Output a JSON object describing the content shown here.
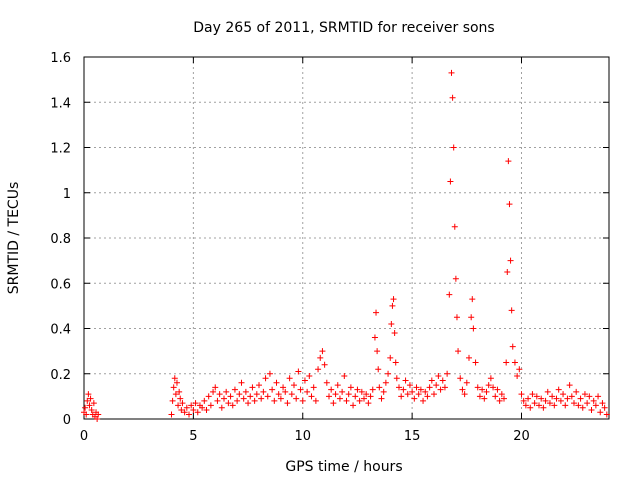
{
  "chart_data": {
    "type": "scatter",
    "title": "Day 265 of 2011, SRMTID for receiver sons",
    "xlabel": "GPS time / hours",
    "ylabel": "SRMTID / TECUs",
    "xlim": [
      0,
      24
    ],
    "ylim": [
      0,
      1.6
    ],
    "x_ticks": [
      0,
      5,
      10,
      15,
      20
    ],
    "x_tick_labels": [
      "0",
      "5",
      "10",
      "15",
      "20"
    ],
    "y_ticks": [
      0,
      0.2,
      0.4,
      0.6,
      0.8,
      1.0,
      1.2,
      1.4,
      1.6
    ],
    "y_tick_labels": [
      "0",
      "0.2",
      "0.4",
      "0.6",
      "0.8",
      "1",
      "1.2",
      "1.4",
      "1.6"
    ],
    "grid": true,
    "marker": "+",
    "color": "#ff0000",
    "series": [
      {
        "name": "SRMTID",
        "points": [
          [
            0.0,
            0.03
          ],
          [
            0.05,
            0.05
          ],
          [
            0.1,
            0.02
          ],
          [
            0.15,
            0.08
          ],
          [
            0.2,
            0.11
          ],
          [
            0.25,
            0.06
          ],
          [
            0.3,
            0.09
          ],
          [
            0.35,
            0.04
          ],
          [
            0.4,
            0.02
          ],
          [
            0.45,
            0.07
          ],
          [
            0.5,
            0.01
          ],
          [
            0.55,
            0.03
          ],
          [
            0.6,
            0.0
          ],
          [
            0.65,
            0.02
          ],
          [
            4.0,
            0.02
          ],
          [
            4.05,
            0.08
          ],
          [
            4.1,
            0.14
          ],
          [
            4.15,
            0.18
          ],
          [
            4.2,
            0.11
          ],
          [
            4.25,
            0.16
          ],
          [
            4.3,
            0.06
          ],
          [
            4.35,
            0.12
          ],
          [
            4.4,
            0.09
          ],
          [
            4.45,
            0.04
          ],
          [
            4.5,
            0.07
          ],
          [
            4.6,
            0.03
          ],
          [
            4.7,
            0.05
          ],
          [
            4.8,
            0.02
          ],
          [
            4.9,
            0.06
          ],
          [
            5.0,
            0.04
          ],
          [
            5.1,
            0.07
          ],
          [
            5.2,
            0.03
          ],
          [
            5.3,
            0.06
          ],
          [
            5.4,
            0.05
          ],
          [
            5.5,
            0.08
          ],
          [
            5.6,
            0.04
          ],
          [
            5.7,
            0.1
          ],
          [
            5.8,
            0.06
          ],
          [
            5.9,
            0.12
          ],
          [
            6.0,
            0.14
          ],
          [
            6.1,
            0.08
          ],
          [
            6.2,
            0.11
          ],
          [
            6.3,
            0.05
          ],
          [
            6.4,
            0.09
          ],
          [
            6.5,
            0.12
          ],
          [
            6.6,
            0.07
          ],
          [
            6.7,
            0.1
          ],
          [
            6.8,
            0.06
          ],
          [
            6.9,
            0.13
          ],
          [
            7.0,
            0.08
          ],
          [
            7.1,
            0.11
          ],
          [
            7.2,
            0.16
          ],
          [
            7.3,
            0.09
          ],
          [
            7.4,
            0.12
          ],
          [
            7.5,
            0.07
          ],
          [
            7.6,
            0.1
          ],
          [
            7.7,
            0.14
          ],
          [
            7.8,
            0.08
          ],
          [
            7.9,
            0.11
          ],
          [
            8.0,
            0.15
          ],
          [
            8.1,
            0.09
          ],
          [
            8.2,
            0.12
          ],
          [
            8.3,
            0.18
          ],
          [
            8.4,
            0.1
          ],
          [
            8.5,
            0.2
          ],
          [
            8.6,
            0.13
          ],
          [
            8.7,
            0.08
          ],
          [
            8.8,
            0.16
          ],
          [
            8.9,
            0.11
          ],
          [
            9.0,
            0.09
          ],
          [
            9.1,
            0.14
          ],
          [
            9.2,
            0.12
          ],
          [
            9.3,
            0.07
          ],
          [
            9.4,
            0.18
          ],
          [
            9.5,
            0.11
          ],
          [
            9.6,
            0.15
          ],
          [
            9.7,
            0.09
          ],
          [
            9.8,
            0.21
          ],
          [
            9.9,
            0.13
          ],
          [
            10.0,
            0.08
          ],
          [
            10.1,
            0.17
          ],
          [
            10.2,
            0.12
          ],
          [
            10.3,
            0.19
          ],
          [
            10.4,
            0.1
          ],
          [
            10.5,
            0.14
          ],
          [
            10.6,
            0.08
          ],
          [
            10.7,
            0.22
          ],
          [
            10.8,
            0.27
          ],
          [
            10.9,
            0.3
          ],
          [
            11.0,
            0.24
          ],
          [
            11.1,
            0.16
          ],
          [
            11.2,
            0.1
          ],
          [
            11.3,
            0.13
          ],
          [
            11.4,
            0.07
          ],
          [
            11.5,
            0.11
          ],
          [
            11.6,
            0.15
          ],
          [
            11.7,
            0.09
          ],
          [
            11.8,
            0.12
          ],
          [
            11.9,
            0.19
          ],
          [
            12.0,
            0.08
          ],
          [
            12.1,
            0.11
          ],
          [
            12.2,
            0.14
          ],
          [
            12.3,
            0.06
          ],
          [
            12.4,
            0.1
          ],
          [
            12.5,
            0.13
          ],
          [
            12.6,
            0.08
          ],
          [
            12.7,
            0.12
          ],
          [
            12.8,
            0.09
          ],
          [
            12.9,
            0.11
          ],
          [
            13.0,
            0.07
          ],
          [
            13.1,
            0.1
          ],
          [
            13.2,
            0.13
          ],
          [
            13.3,
            0.36
          ],
          [
            13.35,
            0.47
          ],
          [
            13.4,
            0.3
          ],
          [
            13.45,
            0.22
          ],
          [
            13.5,
            0.14
          ],
          [
            13.6,
            0.09
          ],
          [
            13.7,
            0.12
          ],
          [
            13.8,
            0.16
          ],
          [
            13.9,
            0.2
          ],
          [
            14.0,
            0.27
          ],
          [
            14.05,
            0.42
          ],
          [
            14.1,
            0.5
          ],
          [
            14.15,
            0.53
          ],
          [
            14.2,
            0.38
          ],
          [
            14.25,
            0.25
          ],
          [
            14.3,
            0.18
          ],
          [
            14.4,
            0.14
          ],
          [
            14.5,
            0.1
          ],
          [
            14.6,
            0.13
          ],
          [
            14.7,
            0.17
          ],
          [
            14.8,
            0.11
          ],
          [
            14.9,
            0.15
          ],
          [
            15.0,
            0.12
          ],
          [
            15.1,
            0.09
          ],
          [
            15.2,
            0.14
          ],
          [
            15.3,
            0.11
          ],
          [
            15.4,
            0.13
          ],
          [
            15.5,
            0.08
          ],
          [
            15.6,
            0.12
          ],
          [
            15.7,
            0.1
          ],
          [
            15.8,
            0.14
          ],
          [
            15.9,
            0.17
          ],
          [
            16.0,
            0.11
          ],
          [
            16.1,
            0.15
          ],
          [
            16.2,
            0.19
          ],
          [
            16.3,
            0.13
          ],
          [
            16.4,
            0.17
          ],
          [
            16.5,
            0.14
          ],
          [
            16.6,
            0.2
          ],
          [
            16.7,
            0.55
          ],
          [
            16.75,
            1.05
          ],
          [
            16.8,
            1.53
          ],
          [
            16.85,
            1.42
          ],
          [
            16.9,
            1.2
          ],
          [
            16.95,
            0.85
          ],
          [
            17.0,
            0.62
          ],
          [
            17.05,
            0.45
          ],
          [
            17.1,
            0.3
          ],
          [
            17.2,
            0.18
          ],
          [
            17.3,
            0.13
          ],
          [
            17.4,
            0.11
          ],
          [
            17.5,
            0.16
          ],
          [
            17.6,
            0.27
          ],
          [
            17.7,
            0.45
          ],
          [
            17.75,
            0.53
          ],
          [
            17.8,
            0.4
          ],
          [
            17.9,
            0.25
          ],
          [
            18.0,
            0.14
          ],
          [
            18.1,
            0.1
          ],
          [
            18.2,
            0.13
          ],
          [
            18.3,
            0.09
          ],
          [
            18.4,
            0.12
          ],
          [
            18.5,
            0.15
          ],
          [
            18.6,
            0.18
          ],
          [
            18.7,
            0.14
          ],
          [
            18.8,
            0.1
          ],
          [
            18.9,
            0.13
          ],
          [
            19.0,
            0.08
          ],
          [
            19.1,
            0.11
          ],
          [
            19.2,
            0.09
          ],
          [
            19.3,
            0.25
          ],
          [
            19.35,
            0.65
          ],
          [
            19.4,
            1.14
          ],
          [
            19.45,
            0.95
          ],
          [
            19.5,
            0.7
          ],
          [
            19.55,
            0.48
          ],
          [
            19.6,
            0.32
          ],
          [
            19.7,
            0.25
          ],
          [
            19.8,
            0.19
          ],
          [
            19.9,
            0.22
          ],
          [
            20.0,
            0.11
          ],
          [
            20.1,
            0.08
          ],
          [
            20.2,
            0.06
          ],
          [
            20.3,
            0.09
          ],
          [
            20.4,
            0.05
          ],
          [
            20.5,
            0.11
          ],
          [
            20.6,
            0.07
          ],
          [
            20.7,
            0.1
          ],
          [
            20.8,
            0.06
          ],
          [
            20.9,
            0.09
          ],
          [
            21.0,
            0.05
          ],
          [
            21.1,
            0.08
          ],
          [
            21.2,
            0.12
          ],
          [
            21.3,
            0.07
          ],
          [
            21.4,
            0.1
          ],
          [
            21.5,
            0.06
          ],
          [
            21.6,
            0.09
          ],
          [
            21.7,
            0.13
          ],
          [
            21.8,
            0.08
          ],
          [
            21.9,
            0.11
          ],
          [
            22.0,
            0.06
          ],
          [
            22.1,
            0.09
          ],
          [
            22.2,
            0.15
          ],
          [
            22.3,
            0.1
          ],
          [
            22.4,
            0.07
          ],
          [
            22.5,
            0.12
          ],
          [
            22.6,
            0.06
          ],
          [
            22.7,
            0.09
          ],
          [
            22.8,
            0.05
          ],
          [
            22.9,
            0.11
          ],
          [
            23.0,
            0.07
          ],
          [
            23.1,
            0.1
          ],
          [
            23.2,
            0.04
          ],
          [
            23.3,
            0.08
          ],
          [
            23.4,
            0.06
          ],
          [
            23.5,
            0.1
          ],
          [
            23.6,
            0.03
          ],
          [
            23.7,
            0.07
          ],
          [
            23.8,
            0.05
          ],
          [
            23.9,
            0.02
          ]
        ]
      }
    ]
  }
}
